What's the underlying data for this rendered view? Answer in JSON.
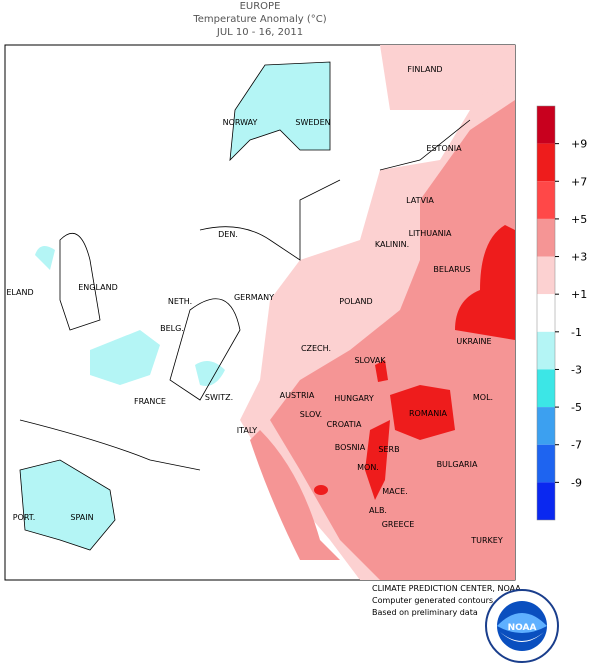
{
  "header": {
    "title": "EUROPE",
    "subtitle": "Temperature Anomaly (°C)",
    "date": "JUL 10 - 16, 2011"
  },
  "map": {
    "labels": [
      "FINLAND",
      "NORWAY",
      "SWEDEN",
      "ESTONIA",
      "LATVIA",
      "DEN.",
      "LITHUANIA",
      "KALININ.",
      "ELAND",
      "ENGLAND",
      "BELARUS",
      "NETH.",
      "GERMANY",
      "POLAND",
      "BELG.",
      "UKRAINE",
      "CZECH.",
      "SLOVAK",
      "FRANCE",
      "SWITZ.",
      "AUSTRIA",
      "HUNGARY",
      "MOL.",
      "ROMANIA",
      "SLOV.",
      "CROATIA",
      "ITALY",
      "BOSNIA",
      "SERB",
      "BULGARIA",
      "MON.",
      "PORT.",
      "SPAIN",
      "MACE.",
      "ALB.",
      "GREECE",
      "TURKEY"
    ]
  },
  "legend": {
    "colors": [
      "#c8001e",
      "#ee1c1c",
      "#ff4848",
      "#f59595",
      "#fcd1d1",
      "#ffffff",
      "#b4f5f5",
      "#3ce6e6",
      "#3ca0f0",
      "#1e64f0",
      "#0a28f0"
    ],
    "ticks": [
      {
        "value": 9,
        "label": "+9"
      },
      {
        "value": 7,
        "label": "+7"
      },
      {
        "value": 5,
        "label": "+5"
      },
      {
        "value": 3,
        "label": "+3"
      },
      {
        "value": 1,
        "label": "+1"
      },
      {
        "value": -1,
        "label": "-1"
      },
      {
        "value": -3,
        "label": "-3"
      },
      {
        "value": -5,
        "label": "-5"
      },
      {
        "value": -7,
        "label": "-7"
      },
      {
        "value": -9,
        "label": "-9"
      }
    ]
  },
  "footer": {
    "lines": [
      "CLIMATE PREDICTION CENTER, NOAA",
      "Computer generated contours",
      "Based on preliminary data"
    ],
    "logo": "NOAA"
  }
}
